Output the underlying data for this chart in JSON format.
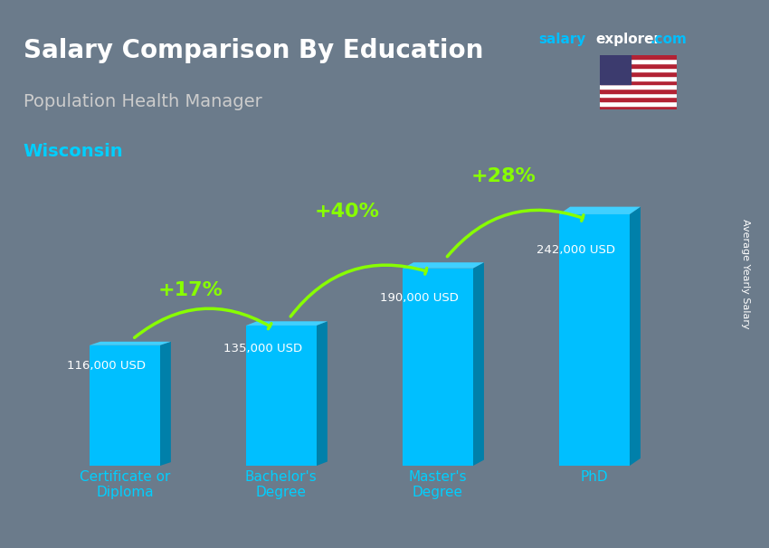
{
  "title": "Salary Comparison By Education",
  "subtitle": "Population Health Manager",
  "location": "Wisconsin",
  "ylabel": "Average Yearly Salary",
  "categories": [
    "Certificate or\nDiploma",
    "Bachelor's\nDegree",
    "Master's\nDegree",
    "PhD"
  ],
  "values": [
    116000,
    135000,
    190000,
    242000
  ],
  "value_labels": [
    "116,000 USD",
    "135,000 USD",
    "190,000 USD",
    "242,000 USD"
  ],
  "pct_changes": [
    "+17%",
    "+40%",
    "+28%"
  ],
  "bar_color_main": "#00BFFF",
  "bar_color_dark": "#0080AA",
  "bar_color_light": "#40D0FF",
  "title_color": "#FFFFFF",
  "subtitle_color": "#CCCCCC",
  "location_color": "#00CFFF",
  "value_label_color": "#FFFFFF",
  "pct_color": "#88FF00",
  "xtick_color": "#00CFFF",
  "background_color": "#6B7B8B",
  "ylim": [
    0,
    290000
  ],
  "figsize": [
    8.5,
    6.06
  ],
  "dpi": 100,
  "salary_explorer_text": "salary",
  "salary_explorer_text2": "explorer",
  "salary_explorer_text3": ".com"
}
